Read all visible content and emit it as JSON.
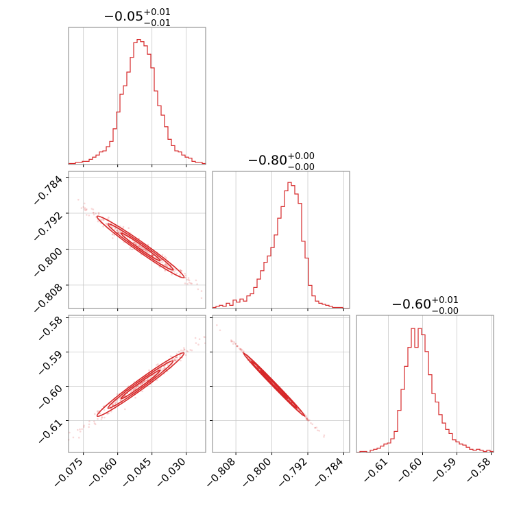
{
  "chart_data": {
    "type": "corner",
    "color": "#d62728",
    "grid": true,
    "parameters": [
      {
        "title": "−0.05",
        "plus": "+0.01",
        "minus": "−0.01",
        "range": [
          -0.0815,
          -0.0215
        ],
        "ticks": [
          -0.075,
          -0.06,
          -0.045,
          -0.03
        ],
        "tick_labels": [
          "−0.075",
          "−0.060",
          "−0.045",
          "−0.030"
        ],
        "hist": [
          1,
          1,
          2,
          2,
          3,
          3,
          5,
          7,
          9,
          12,
          13,
          17,
          22,
          34,
          50,
          67,
          75,
          88,
          102,
          116,
          119,
          117,
          113,
          105,
          92,
          70,
          56,
          47,
          36,
          24,
          18,
          13,
          12,
          9,
          7,
          6,
          3,
          2,
          2,
          1
        ]
      },
      {
        "title": "−0.80",
        "plus": "+0.00",
        "minus": "−0.00",
        "range": [
          -0.8132,
          -0.7827
        ],
        "ticks": [
          -0.808,
          -0.8,
          -0.792,
          -0.784
        ],
        "tick_labels": [
          "−0.808",
          "−0.800",
          "−0.792",
          "−0.784"
        ],
        "hist": [
          1,
          2,
          3,
          2,
          5,
          3,
          8,
          6,
          9,
          7,
          12,
          14,
          20,
          28,
          36,
          44,
          50,
          58,
          70,
          86,
          97,
          112,
          120,
          117,
          109,
          100,
          64,
          48,
          22,
          12,
          7,
          5,
          4,
          3,
          2,
          1,
          1,
          1,
          0,
          0
        ]
      },
      {
        "title": "−0.60",
        "plus": "+0.01",
        "minus": "−0.00",
        "range": [
          -0.6193,
          -0.5793
        ],
        "ticks": [
          -0.61,
          -0.6,
          -0.59,
          -0.58
        ],
        "tick_labels": [
          "−0.61",
          "−0.60",
          "−0.59",
          "−0.58"
        ],
        "hist": [
          0,
          1,
          1,
          0,
          2,
          3,
          4,
          6,
          8,
          9,
          13,
          20,
          40,
          60,
          82,
          100,
          118,
          100,
          118,
          112,
          96,
          74,
          56,
          48,
          36,
          28,
          22,
          18,
          12,
          10,
          8,
          7,
          5,
          3,
          2,
          3,
          2,
          1,
          2,
          1
        ]
      }
    ],
    "hist_ymax": 124,
    "pairs": [
      {
        "row": 1,
        "col": 0,
        "y_ticks": [
          -0.784,
          -0.792,
          -0.8,
          -0.808
        ],
        "y_tick_labels": [
          "−0.784",
          "−0.792",
          "−0.800",
          "−0.808"
        ]
      },
      {
        "row": 2,
        "col": 0,
        "y_ticks": [
          -0.58,
          -0.59,
          -0.6,
          -0.61
        ],
        "y_tick_labels": [
          "−0.58",
          "−0.59",
          "−0.60",
          "−0.61"
        ]
      },
      {
        "row": 2,
        "col": 1
      }
    ]
  }
}
